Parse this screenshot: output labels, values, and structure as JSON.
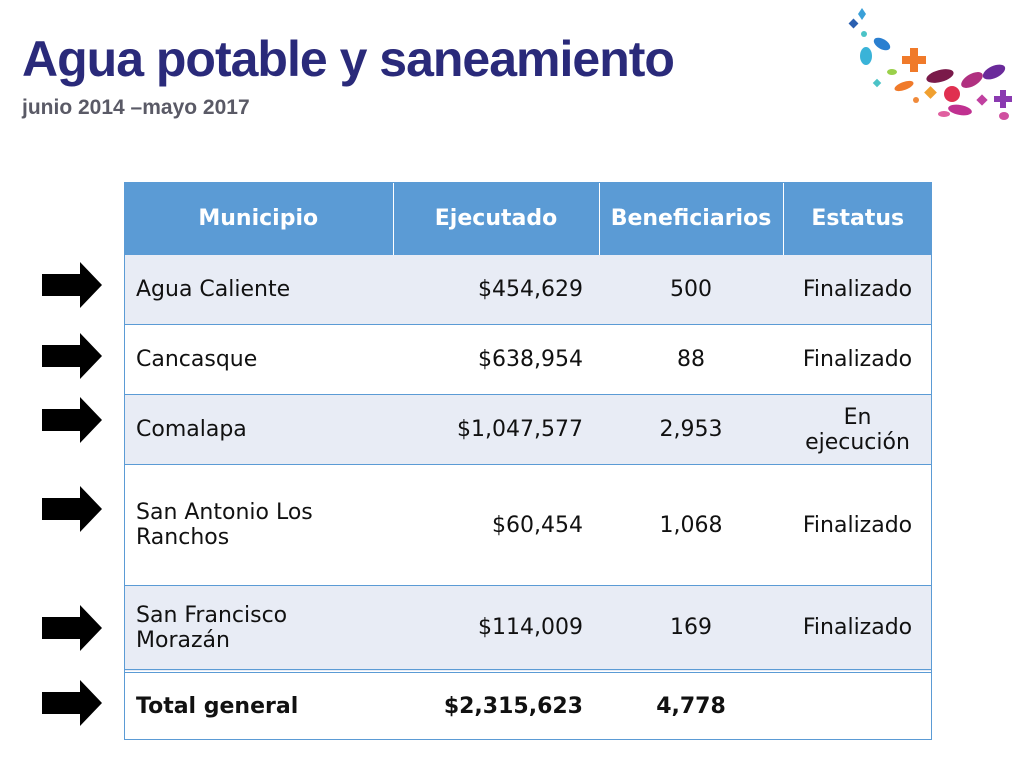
{
  "header": {
    "title": "Agua potable y saneamiento",
    "subtitle": "junio 2014 –mayo 2017"
  },
  "table": {
    "columns": [
      "Municipio",
      "Ejecutado",
      "Beneficiarios",
      "Estatus"
    ],
    "rows": [
      {
        "municipio": "Agua Caliente",
        "ejecutado": "$454,629",
        "beneficiarios": "500",
        "estatus": "Finalizado"
      },
      {
        "municipio": "Cancasque",
        "ejecutado": "$638,954",
        "beneficiarios": "88",
        "estatus": "Finalizado"
      },
      {
        "municipio": "Comalapa",
        "ejecutado": "$1,047,577",
        "beneficiarios": "2,953",
        "estatus": "En ejecución"
      },
      {
        "municipio": "San Antonio Los Ranchos",
        "ejecutado": "$60,454",
        "beneficiarios": "1,068",
        "estatus": "Finalizado"
      },
      {
        "municipio": "San Francisco Morazán",
        "ejecutado": "$114,009",
        "beneficiarios": "169",
        "estatus": "Finalizado"
      }
    ],
    "total": {
      "label": "Total general",
      "ejecutado": "$2,315,623",
      "beneficiarios": "4,778",
      "estatus": ""
    }
  },
  "icons": {
    "row_marker": "right-arrow-icon",
    "decoration": "confetti-decoration"
  },
  "colors": {
    "title": "#2a2a7a",
    "header_bg": "#5b9bd5",
    "band": "#e8ecf5"
  }
}
